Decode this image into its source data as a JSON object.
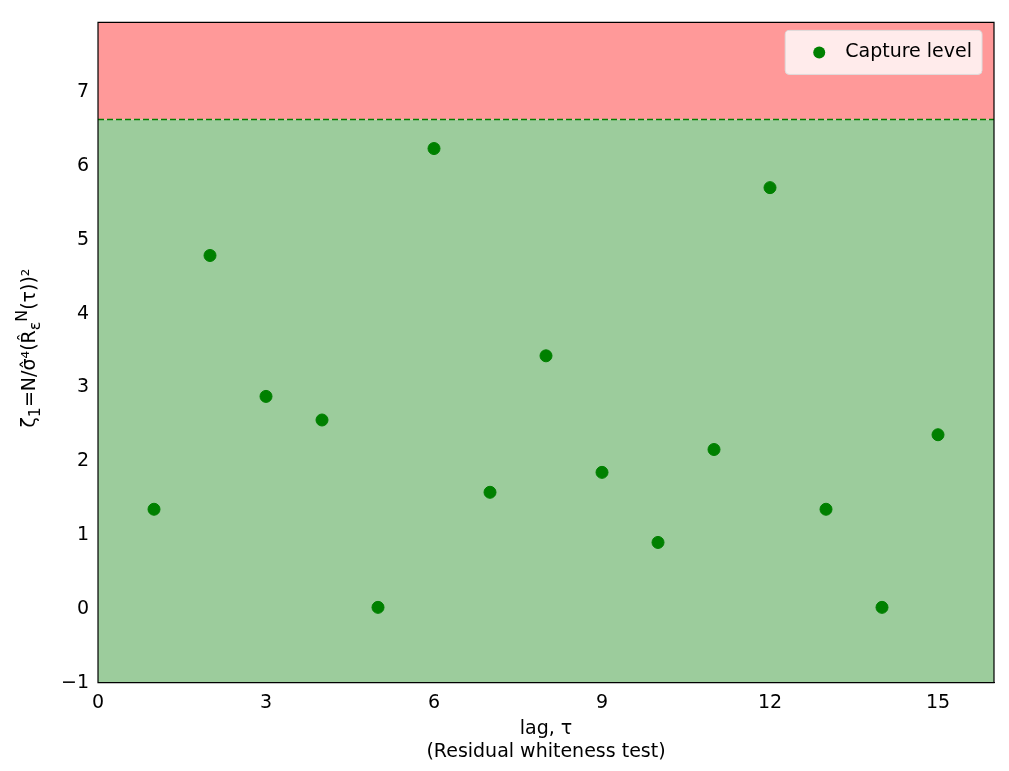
{
  "chart_data": {
    "type": "scatter",
    "xlabel": "lag, τ",
    "ylabel": "ζ$_{1}$=N/σ̂⁴(R̂$_{ε}$$^{N}$(τ))²",
    "annotations": [
      "(Residual whiteness test)"
    ],
    "x": [
      1,
      2,
      3,
      4,
      5,
      6,
      7,
      8,
      9,
      10,
      11,
      12,
      13,
      14,
      15
    ],
    "series": [
      {
        "name": "Capture level",
        "color": "#008000",
        "values": [
          1.35,
          4.79,
          2.88,
          2.56,
          0.02,
          6.24,
          1.58,
          3.43,
          1.85,
          0.9,
          2.16,
          5.71,
          1.35,
          0.02,
          2.36
        ]
      }
    ],
    "xlim": [
      0,
      16
    ],
    "xticks": [
      0,
      3,
      6,
      9,
      12,
      15
    ],
    "ylim": [
      -1,
      7.95
    ],
    "yticks": [
      -1,
      0,
      1,
      2,
      3,
      4,
      5,
      6,
      7
    ],
    "bands": [
      {
        "axis": "y",
        "from": -1,
        "to": 6.635,
        "color": "#9ccc9c"
      },
      {
        "axis": "y",
        "from": 6.635,
        "to": 7.95,
        "color": "#ff9999"
      }
    ],
    "ref_lines": [
      {
        "axis": "y",
        "value": 6.635,
        "color": "#008000",
        "line_style": "dashed"
      }
    ],
    "marker": "circle",
    "legend": "top right",
    "grid": false
  }
}
